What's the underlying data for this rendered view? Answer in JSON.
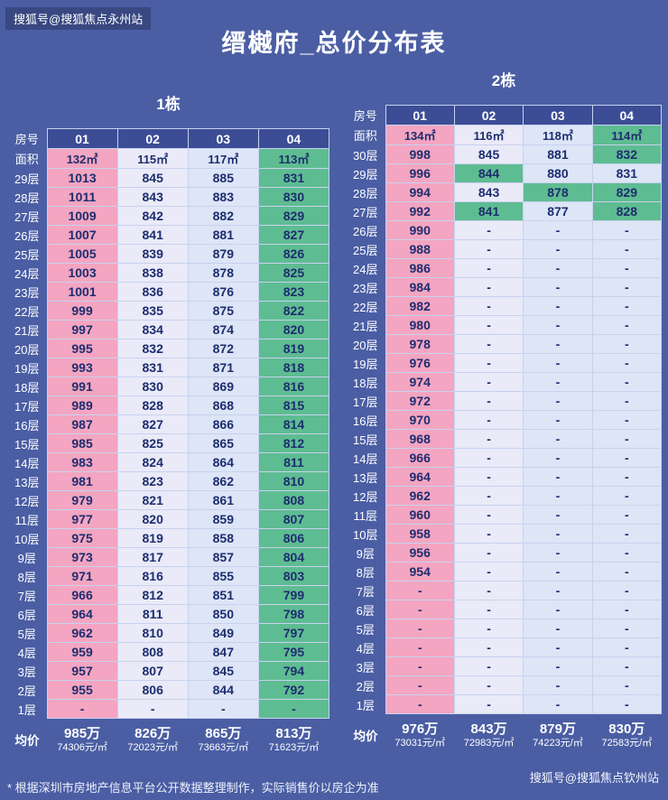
{
  "page": {
    "bg_color": "#4b5ea4",
    "title": "缙樾府_总价分布表",
    "watermark_top": "搜狐号@搜狐焦点永州站",
    "watermark_bottom": "搜狐号@搜狐焦点钦州站",
    "footnote": "* 根据深圳市房地产信息平台公开数据整理制作，实际销售价以房企为准"
  },
  "labels": {
    "room_no": "房号",
    "area": "面积",
    "avg": "均价"
  },
  "palette": {
    "pink": "#f3a5c1",
    "lav": "#eaeaf8",
    "blue": "#dde5f6",
    "green": "#5ebc92",
    "header": "#3c4d96",
    "border": "#c8d2ee",
    "cell_text": "#1d2d6f"
  },
  "chart_data": [
    {
      "type": "table",
      "name": "1栋",
      "room_headers": [
        "01",
        "02",
        "03",
        "04"
      ],
      "areas": [
        "132㎡",
        "115㎡",
        "117㎡",
        "113㎡"
      ],
      "col_colors": [
        "pink",
        "lav",
        "blue",
        "green"
      ],
      "rows": [
        {
          "floor": "29层",
          "values": [
            "1013",
            "845",
            "885",
            "831"
          ]
        },
        {
          "floor": "28层",
          "values": [
            "1011",
            "843",
            "883",
            "830"
          ]
        },
        {
          "floor": "27层",
          "values": [
            "1009",
            "842",
            "882",
            "829"
          ]
        },
        {
          "floor": "26层",
          "values": [
            "1007",
            "841",
            "881",
            "827"
          ]
        },
        {
          "floor": "25层",
          "values": [
            "1005",
            "839",
            "879",
            "826"
          ]
        },
        {
          "floor": "24层",
          "values": [
            "1003",
            "838",
            "878",
            "825"
          ]
        },
        {
          "floor": "23层",
          "values": [
            "1001",
            "836",
            "876",
            "823"
          ]
        },
        {
          "floor": "22层",
          "values": [
            "999",
            "835",
            "875",
            "822"
          ]
        },
        {
          "floor": "21层",
          "values": [
            "997",
            "834",
            "874",
            "820"
          ]
        },
        {
          "floor": "20层",
          "values": [
            "995",
            "832",
            "872",
            "819"
          ]
        },
        {
          "floor": "19层",
          "values": [
            "993",
            "831",
            "871",
            "818"
          ]
        },
        {
          "floor": "18层",
          "values": [
            "991",
            "830",
            "869",
            "816"
          ]
        },
        {
          "floor": "17层",
          "values": [
            "989",
            "828",
            "868",
            "815"
          ]
        },
        {
          "floor": "16层",
          "values": [
            "987",
            "827",
            "866",
            "814"
          ]
        },
        {
          "floor": "15层",
          "values": [
            "985",
            "825",
            "865",
            "812"
          ]
        },
        {
          "floor": "14层",
          "values": [
            "983",
            "824",
            "864",
            "811"
          ]
        },
        {
          "floor": "13层",
          "values": [
            "981",
            "823",
            "862",
            "810"
          ]
        },
        {
          "floor": "12层",
          "values": [
            "979",
            "821",
            "861",
            "808"
          ]
        },
        {
          "floor": "11层",
          "values": [
            "977",
            "820",
            "859",
            "807"
          ]
        },
        {
          "floor": "10层",
          "values": [
            "975",
            "819",
            "858",
            "806"
          ]
        },
        {
          "floor": "9层",
          "values": [
            "973",
            "817",
            "857",
            "804"
          ]
        },
        {
          "floor": "8层",
          "values": [
            "971",
            "816",
            "855",
            "803"
          ]
        },
        {
          "floor": "7层",
          "values": [
            "966",
            "812",
            "851",
            "799"
          ]
        },
        {
          "floor": "6层",
          "values": [
            "964",
            "811",
            "850",
            "798"
          ]
        },
        {
          "floor": "5层",
          "values": [
            "962",
            "810",
            "849",
            "797"
          ]
        },
        {
          "floor": "4层",
          "values": [
            "959",
            "808",
            "847",
            "795"
          ]
        },
        {
          "floor": "3层",
          "values": [
            "957",
            "807",
            "845",
            "794"
          ]
        },
        {
          "floor": "2层",
          "values": [
            "955",
            "806",
            "844",
            "792"
          ]
        },
        {
          "floor": "1层",
          "values": [
            "-",
            "-",
            "-",
            "-"
          ]
        }
      ],
      "avg": [
        {
          "price": "985万",
          "unit": "74306元/㎡"
        },
        {
          "price": "826万",
          "unit": "72023元/㎡"
        },
        {
          "price": "865万",
          "unit": "73663元/㎡"
        },
        {
          "price": "813万",
          "unit": "71623元/㎡"
        }
      ]
    },
    {
      "type": "table",
      "name": "2栋",
      "room_headers": [
        "01",
        "02",
        "03",
        "04"
      ],
      "areas": [
        "134㎡",
        "116㎡",
        "118㎡",
        "114㎡"
      ],
      "col_colors": [
        "pink",
        "lav",
        "blue",
        "blue"
      ],
      "area_colors": [
        "pink",
        "lav",
        "blue",
        "green"
      ],
      "rows": [
        {
          "floor": "30层",
          "values": [
            "998",
            "845",
            "881",
            "832"
          ],
          "colors": [
            "pink",
            "lav",
            "blue",
            "green"
          ]
        },
        {
          "floor": "29层",
          "values": [
            "996",
            "844",
            "880",
            "831"
          ],
          "colors": [
            "pink",
            "green",
            "blue",
            "blue"
          ]
        },
        {
          "floor": "28层",
          "values": [
            "994",
            "843",
            "878",
            "829"
          ],
          "colors": [
            "pink",
            "lav",
            "green",
            "green"
          ]
        },
        {
          "floor": "27层",
          "values": [
            "992",
            "841",
            "877",
            "828"
          ],
          "colors": [
            "pink",
            "green",
            "blue",
            "green"
          ]
        },
        {
          "floor": "26层",
          "values": [
            "990",
            "-",
            "-",
            "-"
          ]
        },
        {
          "floor": "25层",
          "values": [
            "988",
            "-",
            "-",
            "-"
          ]
        },
        {
          "floor": "24层",
          "values": [
            "986",
            "-",
            "-",
            "-"
          ]
        },
        {
          "floor": "23层",
          "values": [
            "984",
            "-",
            "-",
            "-"
          ]
        },
        {
          "floor": "22层",
          "values": [
            "982",
            "-",
            "-",
            "-"
          ]
        },
        {
          "floor": "21层",
          "values": [
            "980",
            "-",
            "-",
            "-"
          ]
        },
        {
          "floor": "20层",
          "values": [
            "978",
            "-",
            "-",
            "-"
          ]
        },
        {
          "floor": "19层",
          "values": [
            "976",
            "-",
            "-",
            "-"
          ]
        },
        {
          "floor": "18层",
          "values": [
            "974",
            "-",
            "-",
            "-"
          ]
        },
        {
          "floor": "17层",
          "values": [
            "972",
            "-",
            "-",
            "-"
          ]
        },
        {
          "floor": "16层",
          "values": [
            "970",
            "-",
            "-",
            "-"
          ]
        },
        {
          "floor": "15层",
          "values": [
            "968",
            "-",
            "-",
            "-"
          ]
        },
        {
          "floor": "14层",
          "values": [
            "966",
            "-",
            "-",
            "-"
          ]
        },
        {
          "floor": "13层",
          "values": [
            "964",
            "-",
            "-",
            "-"
          ]
        },
        {
          "floor": "12层",
          "values": [
            "962",
            "-",
            "-",
            "-"
          ]
        },
        {
          "floor": "11层",
          "values": [
            "960",
            "-",
            "-",
            "-"
          ]
        },
        {
          "floor": "10层",
          "values": [
            "958",
            "-",
            "-",
            "-"
          ]
        },
        {
          "floor": "9层",
          "values": [
            "956",
            "-",
            "-",
            "-"
          ]
        },
        {
          "floor": "8层",
          "values": [
            "954",
            "-",
            "-",
            "-"
          ]
        },
        {
          "floor": "7层",
          "values": [
            "-",
            "-",
            "-",
            "-"
          ]
        },
        {
          "floor": "6层",
          "values": [
            "-",
            "-",
            "-",
            "-"
          ]
        },
        {
          "floor": "5层",
          "values": [
            "-",
            "-",
            "-",
            "-"
          ]
        },
        {
          "floor": "4层",
          "values": [
            "-",
            "-",
            "-",
            "-"
          ]
        },
        {
          "floor": "3层",
          "values": [
            "-",
            "-",
            "-",
            "-"
          ]
        },
        {
          "floor": "2层",
          "values": [
            "-",
            "-",
            "-",
            "-"
          ]
        },
        {
          "floor": "1层",
          "values": [
            "-",
            "-",
            "-",
            "-"
          ]
        }
      ],
      "avg": [
        {
          "price": "976万",
          "unit": "73031元/㎡"
        },
        {
          "price": "843万",
          "unit": "72983元/㎡"
        },
        {
          "price": "879万",
          "unit": "74223元/㎡"
        },
        {
          "price": "830万",
          "unit": "72583元/㎡"
        }
      ]
    }
  ]
}
